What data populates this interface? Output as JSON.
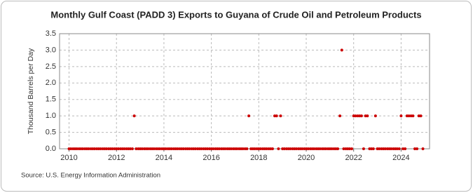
{
  "chart_data": {
    "type": "scatter",
    "title": "Monthly Gulf Coast (PADD 3) Exports to Guyana of Crude Oil and Petroleum Products",
    "y_label": "Thousand Barrels per Day",
    "source": "Source: U.S. Energy Information Administration",
    "color": "#cc0000",
    "grid": true,
    "xlim": [
      2009.6,
      2025.2
    ],
    "xticks": [
      2010,
      2012,
      2014,
      2016,
      2018,
      2020,
      2022,
      2024
    ],
    "ylim": [
      0,
      3.5
    ],
    "yticks": [
      {
        "value": 0,
        "label": "0.0"
      },
      {
        "value": 0.5,
        "label": "0.5"
      },
      {
        "value": 1,
        "label": "1.0"
      },
      {
        "value": 1.5,
        "label": "1.5"
      },
      {
        "value": 2,
        "label": "2.0"
      },
      {
        "value": 2.5,
        "label": "2.5"
      },
      {
        "value": 3,
        "label": "3.0"
      },
      {
        "value": 3.5,
        "label": "3.5"
      }
    ],
    "x": [
      2010.0,
      2010.08,
      2010.17,
      2010.25,
      2010.33,
      2010.42,
      2010.5,
      2010.58,
      2010.67,
      2010.75,
      2010.83,
      2010.92,
      2011.0,
      2011.08,
      2011.17,
      2011.25,
      2011.33,
      2011.42,
      2011.5,
      2011.58,
      2011.67,
      2011.75,
      2011.83,
      2011.92,
      2012.0,
      2012.08,
      2012.17,
      2012.25,
      2012.33,
      2012.42,
      2012.5,
      2012.58,
      2012.67,
      2012.75,
      2012.83,
      2012.92,
      2013.0,
      2013.08,
      2013.17,
      2013.25,
      2013.33,
      2013.42,
      2013.5,
      2013.58,
      2013.67,
      2013.75,
      2013.83,
      2013.92,
      2014.0,
      2014.08,
      2014.17,
      2014.25,
      2014.33,
      2014.42,
      2014.5,
      2014.58,
      2014.67,
      2014.75,
      2014.83,
      2014.92,
      2015.0,
      2015.08,
      2015.17,
      2015.25,
      2015.33,
      2015.42,
      2015.5,
      2015.58,
      2015.67,
      2015.75,
      2015.83,
      2015.92,
      2016.0,
      2016.08,
      2016.17,
      2016.25,
      2016.33,
      2016.42,
      2016.5,
      2016.58,
      2016.67,
      2016.75,
      2016.83,
      2016.92,
      2017.0,
      2017.08,
      2017.17,
      2017.25,
      2017.33,
      2017.42,
      2017.5,
      2017.58,
      2017.67,
      2017.75,
      2017.83,
      2017.92,
      2018.0,
      2018.08,
      2018.17,
      2018.25,
      2018.33,
      2018.42,
      2018.5,
      2018.58,
      2018.67,
      2018.75,
      2018.83,
      2018.92,
      2019.0,
      2019.08,
      2019.17,
      2019.25,
      2019.33,
      2019.42,
      2019.5,
      2019.58,
      2019.67,
      2019.75,
      2019.83,
      2019.92,
      2020.0,
      2020.08,
      2020.17,
      2020.25,
      2020.33,
      2020.42,
      2020.5,
      2020.58,
      2020.67,
      2020.75,
      2020.83,
      2020.92,
      2021.0,
      2021.08,
      2021.17,
      2021.25,
      2021.33,
      2021.42,
      2021.5,
      2021.58,
      2021.67,
      2021.75,
      2021.83,
      2021.92,
      2022.0,
      2022.08,
      2022.17,
      2022.25,
      2022.33,
      2022.42,
      2022.5,
      2022.58,
      2022.67,
      2022.75,
      2022.83,
      2022.92,
      2023.0,
      2023.08,
      2023.17,
      2023.25,
      2023.33,
      2023.42,
      2023.5,
      2023.58,
      2023.67,
      2023.75,
      2023.83,
      2023.92,
      2024.0,
      2024.08,
      2024.17,
      2024.25,
      2024.33,
      2024.42,
      2024.5,
      2024.58,
      2024.67,
      2024.75,
      2024.83,
      2024.92
    ],
    "values": [
      0,
      0,
      0,
      0,
      0,
      0,
      0,
      0,
      0,
      0,
      0,
      0,
      0,
      0,
      0,
      0,
      0,
      0,
      0,
      0,
      0,
      0,
      0,
      0,
      0,
      0,
      0,
      0,
      0,
      0,
      0,
      0,
      0,
      1,
      0,
      0,
      0,
      0,
      0,
      0,
      0,
      0,
      0,
      0,
      0,
      0,
      0,
      0,
      0,
      0,
      0,
      0,
      0,
      0,
      0,
      0,
      0,
      0,
      0,
      0,
      0,
      0,
      0,
      0,
      0,
      0,
      0,
      0,
      0,
      0,
      0,
      0,
      0,
      0,
      0,
      0,
      0,
      0,
      0,
      0,
      0,
      0,
      0,
      0,
      0,
      0,
      0,
      0,
      0,
      0,
      0,
      1,
      0,
      0,
      0,
      0,
      0,
      0,
      0,
      0,
      0,
      0,
      0,
      0,
      1,
      1,
      0,
      1,
      0,
      0,
      0,
      0,
      0,
      0,
      0,
      0,
      0,
      0,
      0,
      0,
      0,
      0,
      0,
      0,
      0,
      0,
      0,
      0,
      0,
      0,
      0,
      0,
      0,
      0,
      0,
      0,
      0,
      1,
      3,
      0,
      0,
      0,
      0,
      0,
      1,
      1,
      1,
      1,
      1,
      0,
      1,
      1,
      0,
      0,
      0,
      1,
      0,
      0,
      0,
      0,
      0,
      0,
      0,
      0,
      0,
      0,
      0,
      0,
      1,
      0,
      0,
      1,
      1,
      1,
      1,
      0,
      0,
      1,
      1,
      0
    ]
  }
}
